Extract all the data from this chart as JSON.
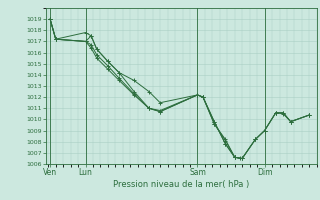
{
  "background_color": "#cce8df",
  "grid_color": "#aacfc5",
  "line_color": "#2d6e3e",
  "xlabel": "Pression niveau de la mer( hPa )",
  "ylim": [
    1006,
    1020
  ],
  "yticks": [
    1006,
    1007,
    1008,
    1009,
    1010,
    1011,
    1012,
    1013,
    1014,
    1015,
    1016,
    1017,
    1018,
    1019
  ],
  "xtick_labels": [
    "Ven",
    "Lun",
    "Sam",
    "Dim"
  ],
  "xtick_positions": [
    0.05,
    1.0,
    4.0,
    5.8
  ],
  "xlim": [
    -0.05,
    7.2
  ],
  "series": [
    [
      [
        0.05,
        0.2,
        1.0,
        1.15,
        1.3,
        1.6,
        1.9,
        2.3,
        2.7,
        3.0,
        4.0,
        4.15,
        4.45,
        4.75,
        5.0,
        5.15
      ],
      [
        1019.0,
        1017.2,
        1017.0,
        1017.5,
        1016.3,
        1015.2,
        1014.2,
        1012.5,
        1011.0,
        1010.8,
        1012.2,
        1012.0,
        1009.6,
        1008.1,
        1006.6,
        1006.5
      ]
    ],
    [
      [
        0.05,
        0.2,
        1.0,
        1.15,
        1.3,
        1.6,
        1.9,
        2.3,
        2.7,
        3.0,
        4.0,
        4.15,
        4.45,
        4.75,
        5.0,
        5.2,
        5.55,
        5.8,
        6.1,
        6.3,
        6.5,
        7.0
      ],
      [
        1019.0,
        1017.2,
        1017.0,
        1016.4,
        1015.5,
        1014.5,
        1013.5,
        1012.2,
        1011.0,
        1010.7,
        1012.2,
        1012.0,
        1009.8,
        1007.8,
        1006.6,
        1006.5,
        1008.2,
        1009.0,
        1010.6,
        1010.6,
        1009.8,
        1010.4
      ]
    ],
    [
      [
        0.05,
        0.2,
        1.0,
        1.15,
        1.3,
        1.6,
        1.9,
        2.3,
        2.7,
        3.0,
        4.0,
        4.15,
        4.45,
        4.75,
        5.0,
        5.2,
        5.55,
        5.8,
        6.1,
        6.3,
        6.5,
        7.0
      ],
      [
        1019.0,
        1017.2,
        1017.8,
        1017.5,
        1016.3,
        1015.2,
        1014.2,
        1013.5,
        1012.5,
        1011.5,
        1012.2,
        1012.0,
        1009.6,
        1008.2,
        1006.6,
        1006.5,
        1008.2,
        1009.0,
        1010.6,
        1010.6,
        1009.8,
        1010.4
      ]
    ],
    [
      [
        0.05,
        0.2,
        1.0,
        1.15,
        1.3,
        1.6,
        1.9,
        2.3,
        2.7,
        3.0,
        4.0,
        4.15,
        4.45,
        4.75,
        5.0,
        5.2,
        5.55,
        5.8,
        6.1,
        6.3,
        6.5,
        7.0
      ],
      [
        1019.0,
        1017.2,
        1017.0,
        1016.7,
        1015.8,
        1014.8,
        1013.7,
        1012.3,
        1011.0,
        1010.7,
        1012.2,
        1012.0,
        1009.8,
        1007.8,
        1006.6,
        1006.5,
        1008.2,
        1009.0,
        1010.6,
        1010.5,
        1009.8,
        1010.4
      ]
    ]
  ]
}
